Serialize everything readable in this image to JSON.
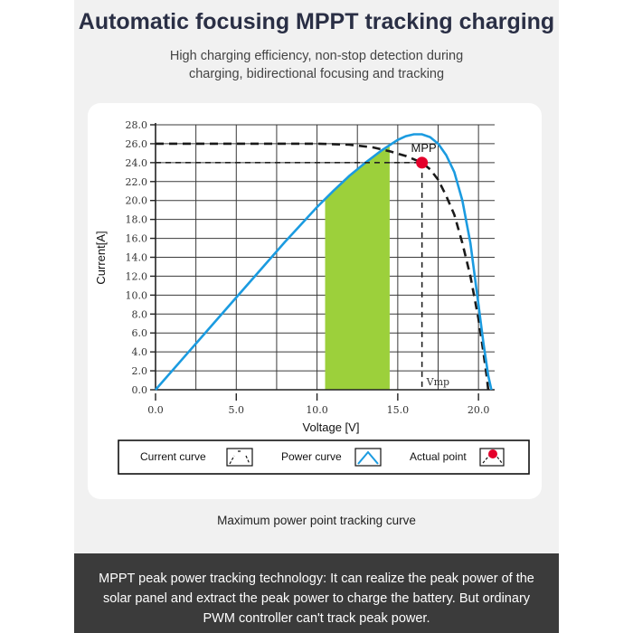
{
  "header": {
    "title": "Automatic focusing MPPT tracking charging",
    "subtitle_line1": "High charging efficiency, non-stop detection during",
    "subtitle_line2": "charging, bidirectional focusing and tracking"
  },
  "caption": "Maximum power point tracking curve",
  "footer": {
    "line1": "MPPT peak power tracking technology: It can realize the peak power of the",
    "line2": "solar panel and extract the peak power to charge the battery. But ordinary",
    "line3": "PWM controller can't track peak power."
  },
  "colors": {
    "blue_curve": "#1b9be0",
    "green_region": "#9cd03b",
    "mpp_dot": "#e4002b",
    "dashed": "#1a1a1a",
    "footer_bg": "#3b3b3b"
  },
  "chart_data": {
    "type": "line",
    "xlabel": "Voltage [V]",
    "ylabel": "Current[A]",
    "xlim": [
      0,
      21
    ],
    "ylim": [
      0,
      28
    ],
    "xticks": [
      0,
      5,
      10,
      15,
      20
    ],
    "xtick_labels": [
      "0.0",
      "5.0",
      "10.0",
      "15.0",
      "20.0"
    ],
    "yticks": [
      0,
      2,
      4,
      6,
      8,
      10,
      12,
      14,
      16,
      18,
      20,
      22,
      24,
      26,
      28
    ],
    "ytick_labels": [
      "0.0",
      "2.0",
      "4.0",
      "6.0",
      "8.0",
      "10.0",
      "12.0",
      "14.0",
      "16.0",
      "18.0",
      "20.0",
      "22.0",
      "24.0",
      "26.0",
      "28.0"
    ],
    "grid": true,
    "series": [
      {
        "name": "Current curve",
        "style": "dashed",
        "x": [
          0,
          5,
          10,
          12,
          13.5,
          14.5,
          15.5,
          16.5,
          17.0,
          17.5,
          18.0,
          18.5,
          19.0,
          19.5,
          20.0,
          20.3,
          20.5,
          20.6
        ],
        "y": [
          26,
          26,
          26,
          25.9,
          25.6,
          25.2,
          24.7,
          24.0,
          23.3,
          22.2,
          20.5,
          18.5,
          15.5,
          12.0,
          7.5,
          4.0,
          1.5,
          0
        ]
      },
      {
        "name": "Power curve",
        "style": "solid",
        "x": [
          0,
          2,
          4,
          6,
          8,
          10,
          11,
          12,
          13,
          14,
          15,
          15.5,
          16,
          16.5,
          17,
          17.5,
          18,
          18.5,
          19,
          19.5,
          20,
          20.3,
          20.6,
          20.8
        ],
        "y": [
          0,
          3.9,
          7.8,
          11.7,
          15.6,
          19.3,
          21.0,
          22.6,
          24.0,
          25.3,
          26.4,
          26.8,
          27.0,
          27.0,
          26.7,
          26.0,
          24.8,
          23.0,
          20.0,
          15.5,
          9.0,
          5.0,
          1.5,
          0
        ]
      }
    ],
    "green_band": {
      "x_start": 10.5,
      "x_end": 14.5
    },
    "mpp": {
      "label": "MPP",
      "x": 16.5,
      "y": 24.0,
      "vmp_label": "Vmp"
    },
    "legend": {
      "placement": "bottom",
      "items": [
        "Current curve",
        "Power curve",
        "Actual point"
      ]
    }
  }
}
